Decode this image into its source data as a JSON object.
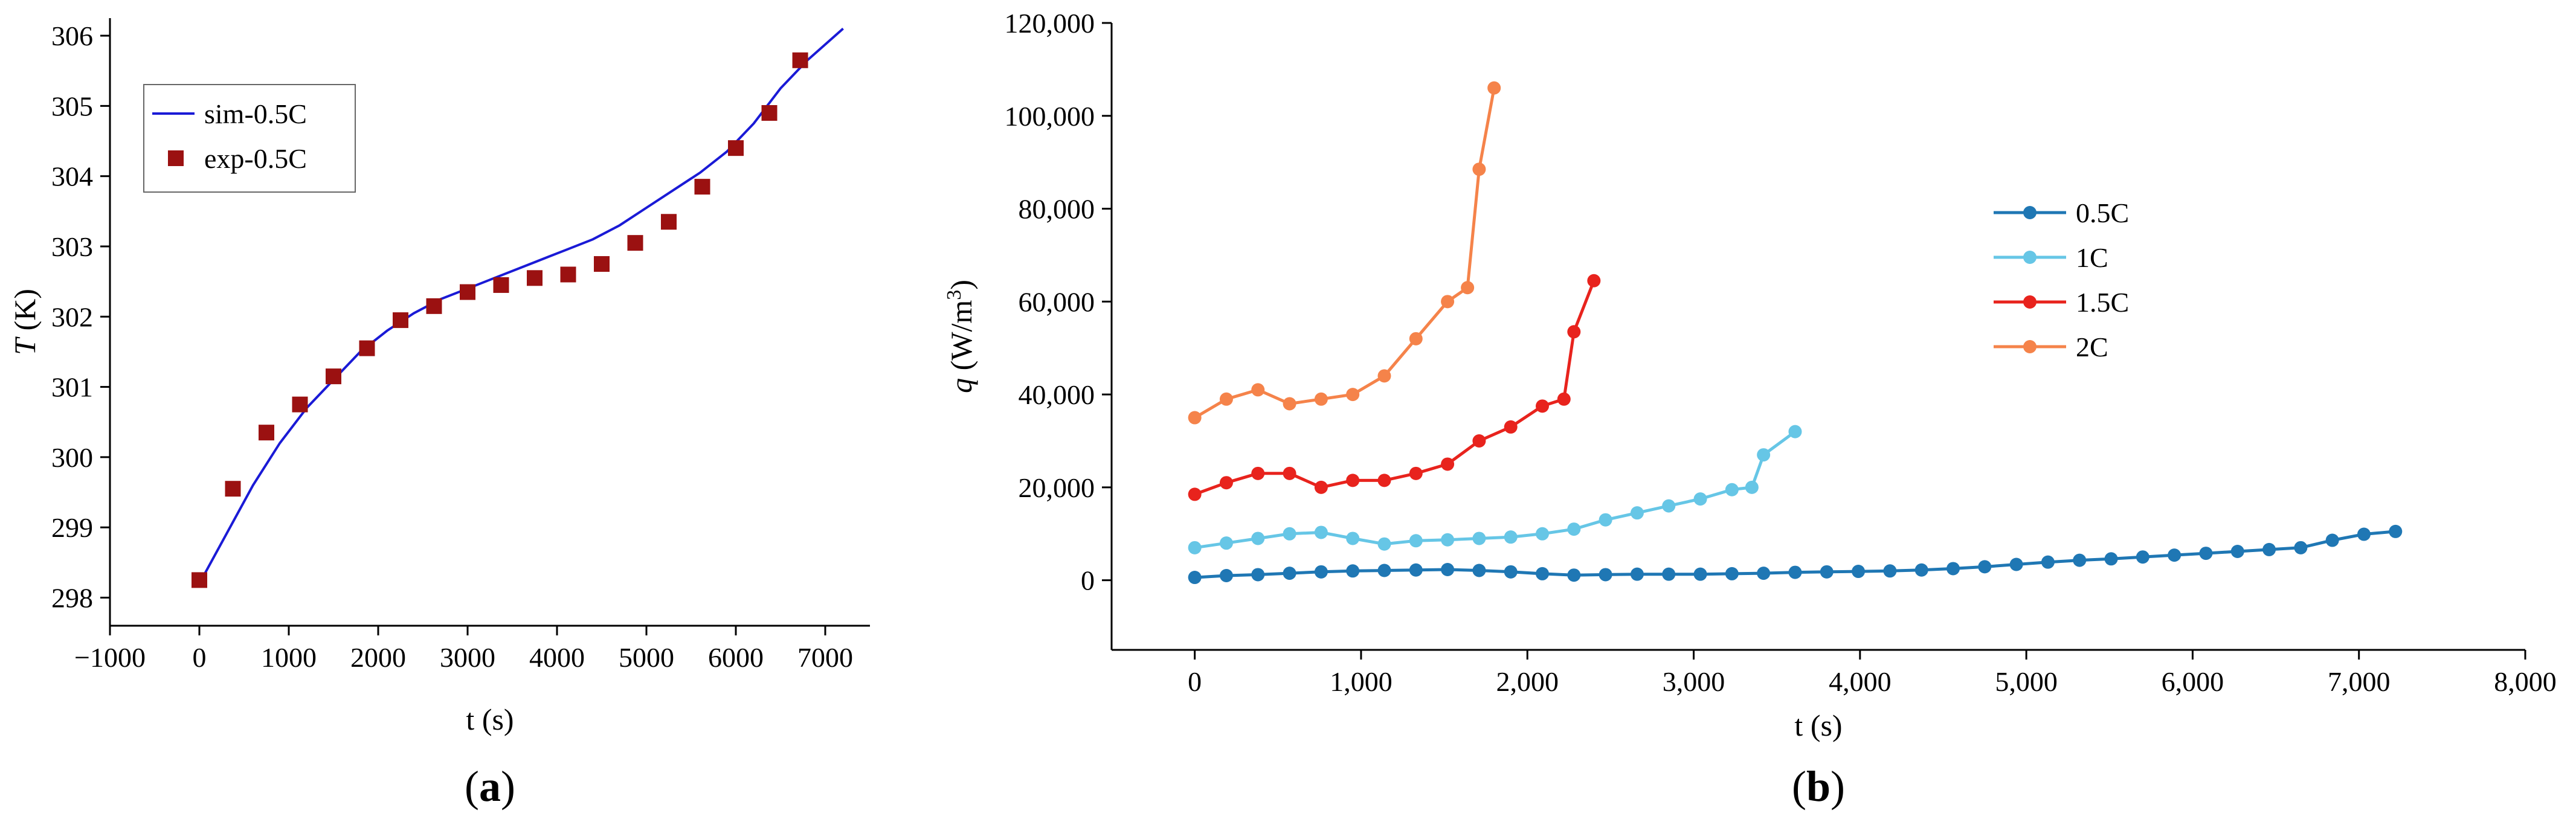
{
  "chart_data": [
    {
      "panel": "a",
      "type": "line+scatter",
      "panel_label": "a",
      "xlabel": "t (s)",
      "ylabel": "T (K)",
      "ylabel_italic": "T",
      "ylabel_rest": " (K)",
      "xlim": [
        -1000,
        7500
      ],
      "ylim": [
        297.6,
        306.25
      ],
      "xticks": [
        -1000,
        0,
        1000,
        2000,
        3000,
        4000,
        5000,
        6000,
        7000
      ],
      "yticks": [
        298,
        299,
        300,
        301,
        302,
        303,
        304,
        305,
        306
      ],
      "xtick_labels": [
        "−1000",
        "0",
        "1000",
        "2000",
        "3000",
        "4000",
        "5000",
        "6000",
        "7000"
      ],
      "ytick_labels": [
        "298",
        "299",
        "300",
        "301",
        "302",
        "303",
        "304",
        "305",
        "306"
      ],
      "series": [
        {
          "name": "sim-0.5C",
          "kind": "line",
          "color": "#1a1ad6",
          "x": [
            0,
            300,
            600,
            900,
            1200,
            1500,
            1800,
            2100,
            2400,
            2700,
            3000,
            3300,
            3600,
            3900,
            4100,
            4400,
            4700,
            5000,
            5300,
            5600,
            5900,
            6200,
            6500,
            6800,
            7200
          ],
          "y": [
            298.2,
            298.9,
            299.6,
            300.2,
            300.7,
            301.1,
            301.5,
            301.8,
            302.05,
            302.25,
            302.4,
            302.55,
            302.7,
            302.85,
            302.95,
            303.1,
            303.3,
            303.55,
            303.8,
            304.05,
            304.35,
            304.75,
            305.25,
            305.65,
            306.1
          ]
        },
        {
          "name": "exp-0.5C",
          "kind": "scatter",
          "color": "#9b1111",
          "x": [
            0,
            375,
            750,
            1125,
            1500,
            1875,
            2250,
            2625,
            3000,
            3375,
            3750,
            4125,
            4500,
            4875,
            5250,
            5625,
            6000,
            6375,
            6720
          ],
          "y": [
            298.25,
            299.55,
            300.35,
            300.75,
            301.15,
            301.55,
            301.95,
            302.15,
            302.35,
            302.45,
            302.55,
            302.6,
            302.75,
            303.05,
            303.35,
            303.85,
            304.4,
            304.9,
            305.65
          ]
        }
      ],
      "legend": [
        "sim-0.5C",
        "exp-0.5C"
      ]
    },
    {
      "panel": "b",
      "type": "line",
      "panel_label": "b",
      "xlabel": "t (s)",
      "ylabel": "q (W/m3)",
      "ylabel_italic": "q",
      "ylabel_rest": " (W/m",
      "ylabel_sup": "3",
      "ylabel_end": ")",
      "xlim": [
        -500,
        8000
      ],
      "ylim": [
        -15000,
        120000
      ],
      "xticks": [
        0,
        1000,
        2000,
        3000,
        4000,
        5000,
        6000,
        7000,
        8000
      ],
      "yticks": [
        0,
        20000,
        40000,
        60000,
        80000,
        100000,
        120000
      ],
      "xtick_labels": [
        "0",
        "1,000",
        "2,000",
        "3,000",
        "4,000",
        "5,000",
        "6,000",
        "7,000",
        "8,000"
      ],
      "ytick_labels": [
        "0",
        "20,000",
        "40,000",
        "60,000",
        "80,000",
        "100,000",
        "120,000"
      ],
      "series": [
        {
          "name": "0.5C",
          "color": "#1f77b4",
          "x": [
            0,
            190,
            380,
            570,
            760,
            950,
            1140,
            1330,
            1520,
            1710,
            1900,
            2090,
            2280,
            2470,
            2660,
            2850,
            3040,
            3230,
            3420,
            3610,
            3800,
            3990,
            4180,
            4370,
            4560,
            4750,
            4940,
            5130,
            5320,
            5510,
            5700,
            5890,
            6080,
            6270,
            6460,
            6650,
            6840,
            7030,
            7220
          ],
          "y": [
            600,
            1000,
            1200,
            1500,
            1800,
            2000,
            2100,
            2200,
            2300,
            2100,
            1800,
            1400,
            1100,
            1200,
            1300,
            1300,
            1300,
            1400,
            1500,
            1700,
            1800,
            1900,
            2000,
            2200,
            2500,
            2900,
            3400,
            3900,
            4300,
            4600,
            5000,
            5400,
            5800,
            6200,
            6600,
            7000,
            8600,
            9900,
            10500
          ]
        },
        {
          "name": "1C",
          "color": "#66c6e6",
          "x": [
            0,
            190,
            380,
            570,
            760,
            950,
            1140,
            1330,
            1520,
            1710,
            1900,
            2090,
            2280,
            2470,
            2660,
            2850,
            3040,
            3230,
            3350,
            3420,
            3610
          ],
          "y": [
            7000,
            8000,
            9000,
            10000,
            10300,
            9000,
            7800,
            8500,
            8700,
            9000,
            9300,
            10000,
            11000,
            13000,
            14500,
            16000,
            17500,
            19500,
            20000,
            27000,
            32000
          ]
        },
        {
          "name": "1.5C",
          "color": "#e8231d",
          "x": [
            0,
            190,
            380,
            570,
            760,
            950,
            1140,
            1330,
            1520,
            1710,
            1900,
            2090,
            2220,
            2280,
            2400
          ],
          "y": [
            18500,
            21000,
            23000,
            23000,
            20000,
            21500,
            21500,
            23000,
            25000,
            30000,
            33000,
            37500,
            39000,
            53500,
            64500
          ]
        },
        {
          "name": "2C",
          "color": "#f5834a",
          "x": [
            0,
            190,
            380,
            570,
            760,
            950,
            1140,
            1330,
            1520,
            1640,
            1710,
            1800
          ],
          "y": [
            35000,
            39000,
            41000,
            38000,
            39000,
            40000,
            44000,
            52000,
            60000,
            63000,
            88500,
            106000
          ]
        }
      ],
      "legend": [
        "0.5C",
        "1C",
        "1.5C",
        "2C"
      ]
    }
  ]
}
